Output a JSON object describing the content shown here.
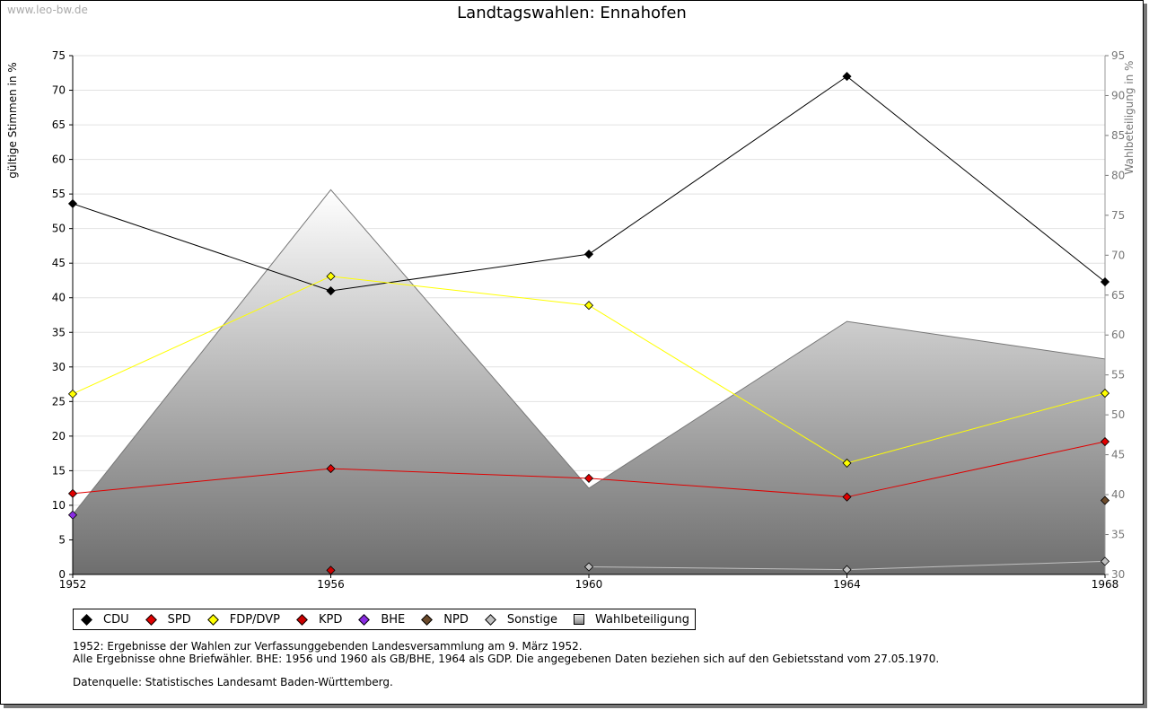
{
  "watermark": "www.leo-bw.de",
  "chart_data": {
    "type": "line",
    "title": "Landtagswahlen: Ennahofen",
    "ylabel": "gültige Stimmen in %",
    "y2label": "Wahlbeteiligung in %",
    "x": [
      "1952",
      "1956",
      "1960",
      "1964",
      "1968"
    ],
    "ylim": [
      0,
      75
    ],
    "yticks": [
      "0",
      "5",
      "10",
      "15",
      "20",
      "25",
      "30",
      "35",
      "40",
      "45",
      "50",
      "55",
      "60",
      "65",
      "70",
      "75"
    ],
    "y2lim": [
      30,
      95
    ],
    "y2ticks": [
      "30",
      "35",
      "40",
      "45",
      "50",
      "55",
      "60",
      "65",
      "70",
      "75",
      "80",
      "85",
      "90",
      "95"
    ],
    "grid": true,
    "series": [
      {
        "name": "CDU",
        "color": "#000000",
        "values": [
          53.6,
          41.0,
          46.3,
          72.0,
          42.3
        ]
      },
      {
        "name": "SPD",
        "color": "#e00000",
        "values": [
          11.7,
          15.3,
          13.9,
          11.2,
          19.2
        ]
      },
      {
        "name": "FDP/DVP",
        "color": "#ffff00",
        "values": [
          26.1,
          43.1,
          38.9,
          16.1,
          26.2
        ]
      },
      {
        "name": "KPD",
        "color": "#cc0000",
        "values": [
          null,
          0.6,
          null,
          null,
          null
        ]
      },
      {
        "name": "BHE",
        "color": "#8a2be2",
        "values": [
          8.6,
          null,
          null,
          null,
          null
        ]
      },
      {
        "name": "NPD",
        "color": "#6b4a2b",
        "values": [
          null,
          null,
          null,
          null,
          10.7
        ]
      },
      {
        "name": "Sonstige",
        "color": "#c0c0c0",
        "values": [
          null,
          null,
          1.1,
          0.7,
          1.9
        ]
      }
    ],
    "area_series": {
      "name": "Wahlbeteiligung",
      "axis": "right",
      "values": [
        37.5,
        78.2,
        40.8,
        61.7,
        57.0
      ]
    },
    "legend_position": "bottom"
  },
  "legend": [
    {
      "label": "CDU",
      "color": "#000000",
      "kind": "diamond"
    },
    {
      "label": "SPD",
      "color": "#e00000",
      "kind": "diamond"
    },
    {
      "label": "FDP/DVP",
      "color": "#ffff00",
      "kind": "diamond"
    },
    {
      "label": "KPD",
      "color": "#cc0000",
      "kind": "diamond"
    },
    {
      "label": "BHE",
      "color": "#8a2be2",
      "kind": "diamond"
    },
    {
      "label": "NPD",
      "color": "#6b4a2b",
      "kind": "diamond"
    },
    {
      "label": "Sonstige",
      "color": "#c0c0c0",
      "kind": "diamond"
    },
    {
      "label": "Wahlbeteiligung",
      "color": "#aaaaaa",
      "kind": "square"
    }
  ],
  "notes": {
    "line1": "1952: Ergebnisse der Wahlen zur Verfassunggebenden Landesversammlung am 9. März 1952.",
    "line2": "Alle Ergebnisse ohne Briefwähler. BHE: 1956 und 1960 als GB/BHE, 1964 als GDP. Die angegebenen Daten beziehen sich auf den Gebietsstand vom 27.05.1970.",
    "line3": "Datenquelle: Statistisches Landesamt Baden-Württemberg."
  }
}
